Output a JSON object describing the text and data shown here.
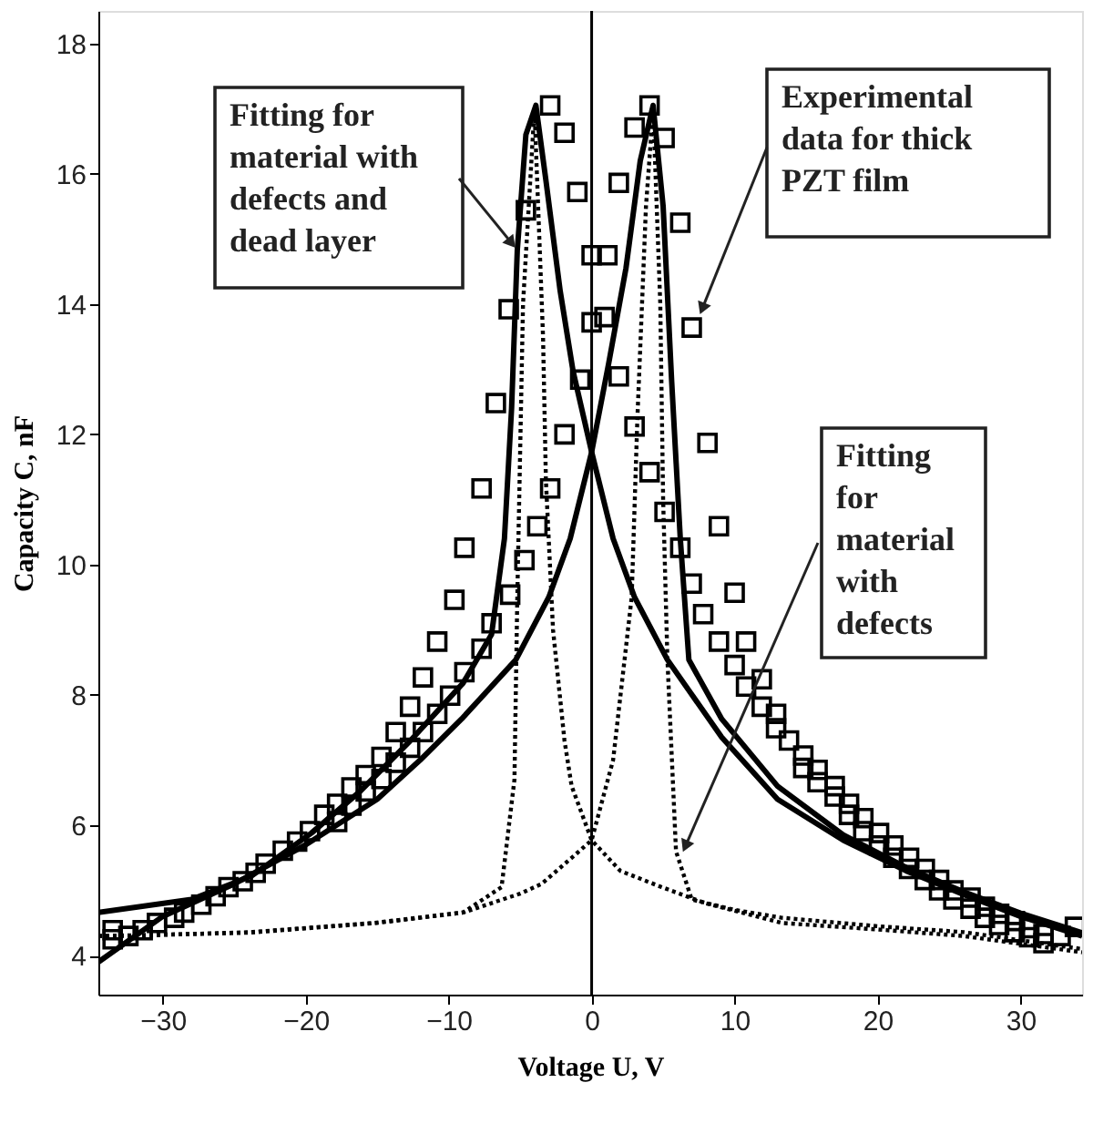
{
  "chart_data": {
    "type": "line",
    "xlabel": "Voltage U, V",
    "ylabel": "Capacity C, nF",
    "xlim": [
      -34.5,
      34.3
    ],
    "ylim": [
      3.4,
      18.5
    ],
    "xticks": [
      -30,
      -20,
      -10,
      0,
      10,
      20,
      30
    ],
    "yticks": [
      4,
      6,
      8,
      10,
      12,
      14,
      16,
      18
    ],
    "grid": false,
    "ref_lines": [
      {
        "axis": "x",
        "value": 0,
        "color": "#000000",
        "line_style": "solid"
      }
    ],
    "annotations": [
      {
        "text": "Fitting for\nmaterial with\ndefects and\ndead layer",
        "x": -5.2,
        "y": 14.83
      },
      {
        "text": "Experimental\ndata for thick\nPZT film",
        "x": 7.5,
        "y": 13.8
      },
      {
        "text": "Fitting\nfor\nmaterial\nwith\ndefects",
        "x": 6.3,
        "y": 5.55
      }
    ],
    "series": [
      {
        "type": "scatter",
        "marker": "square",
        "color": "#000000",
        "x": [
          -2.9,
          -1.9,
          -1.0,
          4.05,
          3.0,
          5.1,
          1.9,
          6.2,
          0,
          1.1,
          0,
          0.9,
          7.0,
          -0.8,
          1.9,
          -1.9,
          3.0,
          8.1,
          -2.9,
          4.05,
          5.1,
          8.9,
          -3.8,
          6.2,
          -4.6,
          -5.8,
          -6.7,
          -7.7,
          -8.9,
          -4.7,
          7.0,
          10.0,
          7.8,
          8.9,
          10.8,
          10.0,
          11.9,
          10.8,
          11.9,
          12.9,
          12.9,
          13.8,
          14.8,
          14.8,
          15.8,
          15.8,
          17.0,
          17.0,
          18.0,
          18.0,
          19.0,
          19.0,
          20.1,
          20.1,
          21.1,
          21.1,
          22.2,
          22.2,
          23.3,
          23.3,
          24.3,
          24.3,
          25.3,
          25.3,
          26.5,
          26.5,
          27.5,
          27.5,
          28.5,
          28.5,
          29.6,
          29.6,
          30.6,
          30.6,
          31.6,
          31.6,
          32.8,
          33.8,
          -5.7,
          -9.6,
          -7.0,
          -10.8,
          -7.7,
          -11.8,
          -8.9,
          -9.9,
          -12.7,
          -10.8,
          -13.7,
          -11.8,
          -14.7,
          -12.7,
          -13.7,
          -15.8,
          -14.7,
          -16.8,
          -15.8,
          -17.8,
          -16.8,
          -18.7,
          -17.8,
          -19.7,
          -20.6,
          -21.6,
          -22.8,
          -23.5,
          -24.4,
          -25.4,
          -26.3,
          -27.3,
          -28.5,
          -29.2,
          -30.4,
          -31.4,
          -32.4,
          -33.5,
          -33.5
        ],
        "values": [
          17.05,
          16.63,
          15.72,
          17.05,
          16.71,
          16.55,
          15.86,
          15.25,
          14.75,
          14.75,
          13.72,
          13.8,
          13.64,
          12.84,
          12.89,
          12.0,
          12.12,
          11.87,
          11.17,
          11.42,
          10.81,
          10.59,
          10.59,
          10.26,
          15.44,
          13.92,
          12.48,
          11.17,
          10.26,
          10.07,
          9.71,
          9.57,
          9.24,
          8.82,
          8.82,
          8.46,
          8.24,
          8.13,
          7.82,
          7.71,
          7.49,
          7.3,
          7.07,
          6.88,
          6.85,
          6.66,
          6.6,
          6.44,
          6.33,
          6.16,
          6.11,
          5.91,
          5.88,
          5.69,
          5.69,
          5.5,
          5.5,
          5.33,
          5.33,
          5.16,
          5.16,
          5.0,
          5.0,
          4.86,
          4.89,
          4.72,
          4.75,
          4.58,
          4.64,
          4.47,
          4.53,
          4.36,
          4.42,
          4.28,
          4.33,
          4.19,
          4.3,
          4.44,
          9.54,
          9.46,
          9.1,
          8.82,
          8.71,
          8.27,
          8.35,
          7.99,
          7.82,
          7.71,
          7.43,
          7.43,
          7.05,
          7.19,
          6.96,
          6.77,
          6.71,
          6.58,
          6.52,
          6.33,
          6.3,
          6.16,
          6.05,
          5.91,
          5.75,
          5.61,
          5.41,
          5.27,
          5.14,
          5.05,
          4.91,
          4.78,
          4.66,
          4.58,
          4.5,
          4.39,
          4.3,
          4.39,
          4.25
        ]
      },
      {
        "line_style": "solid",
        "marker": "none",
        "color": "#000000",
        "x": [
          -34.5,
          -28,
          -23.8,
          -19.6,
          -16.2,
          -12.8,
          -9,
          -7,
          -6.1,
          -5.6,
          -5.2,
          -4.6,
          -3.9,
          -3.2,
          -2.2,
          -1.3,
          0,
          1.5,
          3,
          5.3,
          9.1,
          13,
          17.6,
          22,
          26,
          30,
          34.3
        ],
        "values": [
          4.66,
          4.86,
          5.22,
          5.88,
          6.52,
          7.27,
          8.18,
          8.93,
          10.4,
          12.4,
          14.83,
          16.6,
          17.05,
          15.9,
          14.2,
          12.97,
          11.73,
          10.4,
          9.5,
          8.54,
          7.35,
          6.4,
          5.77,
          5.3,
          4.94,
          4.6,
          4.3
        ]
      },
      {
        "line_style": "solid",
        "marker": "none",
        "color": "#000000",
        "x": [
          -34.5,
          -30,
          -25,
          -20,
          -15,
          -12,
          -9.1,
          -5.3,
          -3,
          -1.5,
          0,
          1.2,
          2.4,
          3.4,
          4.3,
          5.0,
          5.6,
          6.2,
          6.8,
          9.1,
          13,
          17.6,
          22,
          26,
          30,
          34.3
        ],
        "values": [
          3.9,
          4.6,
          5.1,
          5.7,
          6.4,
          7.0,
          7.63,
          8.54,
          9.5,
          10.4,
          11.73,
          13.1,
          14.55,
          16.2,
          17.05,
          15.5,
          12.8,
          10.4,
          8.54,
          7.63,
          6.6,
          5.85,
          5.35,
          4.98,
          4.65,
          4.35
        ]
      },
      {
        "line_style": "dotted",
        "marker": "none",
        "color": "#000000",
        "x": [
          -34.5,
          -32.3,
          -23.8,
          -15.3,
          -9,
          -6.3,
          -5.4,
          -5.2,
          -4.8,
          -4.0,
          -3.4,
          -3.2,
          -2.7,
          -1.9,
          -1.4,
          0,
          2,
          4.9,
          8,
          13.3,
          20,
          26,
          34.3
        ],
        "values": [
          4.3,
          4.3,
          4.36,
          4.5,
          4.66,
          5.05,
          6.7,
          9.5,
          14,
          17.0,
          13.5,
          11.3,
          9.0,
          7.3,
          6.6,
          5.77,
          5.3,
          5.05,
          4.8,
          4.5,
          4.4,
          4.3,
          4.05
        ]
      },
      {
        "line_style": "dotted",
        "marker": "none",
        "color": "#000000",
        "x": [
          -34.5,
          -24,
          -15,
          -9,
          -5,
          -3.5,
          -1.4,
          0,
          1.5,
          2.8,
          3.2,
          3.8,
          4.3,
          4.8,
          5.0,
          5.3,
          5.9,
          7.0,
          10,
          13.3,
          20,
          26,
          34.3
        ],
        "values": [
          4.3,
          4.35,
          4.5,
          4.66,
          4.95,
          5.1,
          5.5,
          5.77,
          7.0,
          9.5,
          12.25,
          15.5,
          17.0,
          14,
          11,
          8.54,
          5.6,
          4.86,
          4.7,
          4.58,
          4.45,
          4.36,
          4.1
        ]
      }
    ]
  }
}
